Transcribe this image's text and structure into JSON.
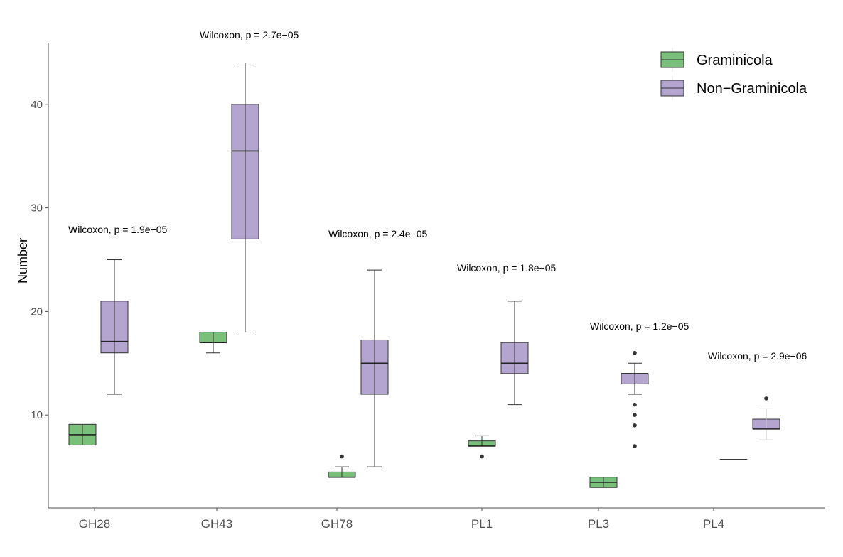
{
  "chart_data": {
    "type": "box",
    "title": "",
    "xlabel": "",
    "ylabel": "Number",
    "ylim": [
      1,
      46
    ],
    "yticks": [
      10,
      20,
      30,
      40
    ],
    "grid": false,
    "legend": {
      "placement": "top-right",
      "entries": [
        {
          "name": "Graminicola",
          "color": "#79c07a"
        },
        {
          "name": "Non−Graminicola",
          "color": "#b3a4d0"
        }
      ]
    },
    "categories": [
      "GH28",
      "GH43",
      "GH78",
      "PL1",
      "PL3",
      "PL4"
    ],
    "annotations": [
      "Wilcoxon, p = 1.9e−05",
      "Wilcoxon, p = 2.7e−05",
      "Wilcoxon, p = 2.4e−05",
      "Wilcoxon, p = 1.8e−05",
      "Wilcoxon, p = 1.2e−05",
      "Wilcoxon, p = 2.9e−06"
    ],
    "series": [
      {
        "name": "Graminicola",
        "color": "#79c07a",
        "boxes": [
          {
            "min": 7.1,
            "q1": 7.1,
            "median": 8.1,
            "q3": 9.1,
            "max": 9.1,
            "outliers": []
          },
          {
            "min": 16,
            "q1": 17,
            "median": 17,
            "q3": 18,
            "max": 18,
            "outliers": []
          },
          {
            "min": 4,
            "q1": 4,
            "median": 4,
            "q3": 4.5,
            "max": 5,
            "outliers": [
              6
            ]
          },
          {
            "min": 7,
            "q1": 7,
            "median": 7,
            "q3": 7.5,
            "max": 8,
            "outliers": [
              6
            ]
          },
          {
            "min": 3,
            "q1": 3,
            "median": 3.5,
            "q3": 4,
            "max": 4,
            "outliers": []
          },
          {
            "min": 5.7,
            "q1": 5.7,
            "median": 5.7,
            "q3": 5.7,
            "max": 5.7,
            "outliers": []
          }
        ]
      },
      {
        "name": "Non−Graminicola",
        "color": "#b3a4d0",
        "boxes": [
          {
            "min": 12,
            "q1": 16,
            "median": 17.1,
            "q3": 21,
            "max": 25,
            "outliers": []
          },
          {
            "min": 18,
            "q1": 27,
            "median": 35.5,
            "q3": 40,
            "max": 44,
            "outliers": []
          },
          {
            "min": 5,
            "q1": 12,
            "median": 15,
            "q3": 17.25,
            "max": 24,
            "outliers": []
          },
          {
            "min": 11,
            "q1": 14,
            "median": 15,
            "q3": 17,
            "max": 21,
            "outliers": []
          },
          {
            "min": 12,
            "q1": 13,
            "median": 14,
            "q3": 14,
            "max": 15,
            "outliers": [
              16,
              11,
              10,
              9,
              7
            ]
          },
          {
            "min": 7.6,
            "q1": 8.65,
            "median": 8.65,
            "q3": 9.6,
            "max": 10.6,
            "outliers": [
              11.6
            ]
          }
        ]
      }
    ]
  }
}
